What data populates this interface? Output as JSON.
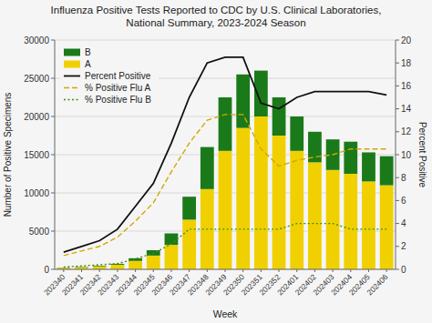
{
  "chart_data": {
    "type": "bar",
    "title": "Influenza Positive Tests Reported to CDC by U.S. Clinical Laboratories,\nNational Summary, 2023-2024 Season",
    "x_label": "Week",
    "y_label": "Number of Positive Specimens",
    "y2_label": "Percent Positive",
    "categories": [
      "202340",
      "202341",
      "202342",
      "202343",
      "202344",
      "202345",
      "202346",
      "202347",
      "202348",
      "202349",
      "202350",
      "202351",
      "202352",
      "202401",
      "202402",
      "202403",
      "202404",
      "202405",
      "202406"
    ],
    "series": [
      {
        "name": "A",
        "type": "bar",
        "color": "#f0d000",
        "values": [
          200,
          280,
          380,
          600,
          1100,
          1800,
          3200,
          6500,
          10500,
          15500,
          18500,
          20000,
          17500,
          15500,
          14000,
          13000,
          12500,
          11500,
          11000
        ]
      },
      {
        "name": "B",
        "type": "bar",
        "color": "#1a7a1a",
        "values": [
          30,
          50,
          80,
          120,
          350,
          700,
          1500,
          3000,
          5500,
          7000,
          7000,
          6000,
          5000,
          4500,
          4000,
          4000,
          4200,
          3800,
          3800
        ]
      },
      {
        "name": "Percent Positive",
        "type": "line",
        "axis": "y2",
        "color": "#111111",
        "line_style": "solid",
        "values": [
          1.5,
          2.0,
          2.5,
          3.5,
          5.5,
          7.5,
          11.0,
          15.0,
          18.0,
          18.5,
          18.5,
          14.5,
          14.0,
          15.0,
          15.5,
          15.5,
          15.5,
          15.5,
          15.2
        ]
      },
      {
        "name": "% Positive Flu A",
        "type": "line",
        "axis": "y2",
        "color": "#d4a800",
        "line_style": "dashed",
        "values": [
          1.2,
          1.6,
          2.0,
          2.8,
          4.2,
          5.8,
          8.5,
          11.0,
          13.0,
          13.5,
          13.5,
          10.5,
          9.0,
          9.5,
          9.8,
          10.0,
          10.5,
          10.5,
          10.5
        ]
      },
      {
        "name": "% Positive Flu B",
        "type": "line",
        "axis": "y2",
        "color": "#4a8a1a",
        "line_style": "dotted",
        "values": [
          0.2,
          0.3,
          0.4,
          0.5,
          0.9,
          1.4,
          2.2,
          3.5,
          3.5,
          3.5,
          3.5,
          3.5,
          3.5,
          4.0,
          4.0,
          4.0,
          3.5,
          3.5,
          3.5
        ]
      }
    ],
    "stacked": true,
    "ylim": [
      0,
      30000
    ],
    "yticks": [
      0,
      5000,
      10000,
      15000,
      20000,
      25000,
      30000
    ],
    "y2lim": [
      0,
      20
    ],
    "y2ticks": [
      0,
      2,
      4,
      6,
      8,
      10,
      12,
      14,
      16,
      18,
      20
    ],
    "grid": true,
    "legend": "upper left"
  }
}
